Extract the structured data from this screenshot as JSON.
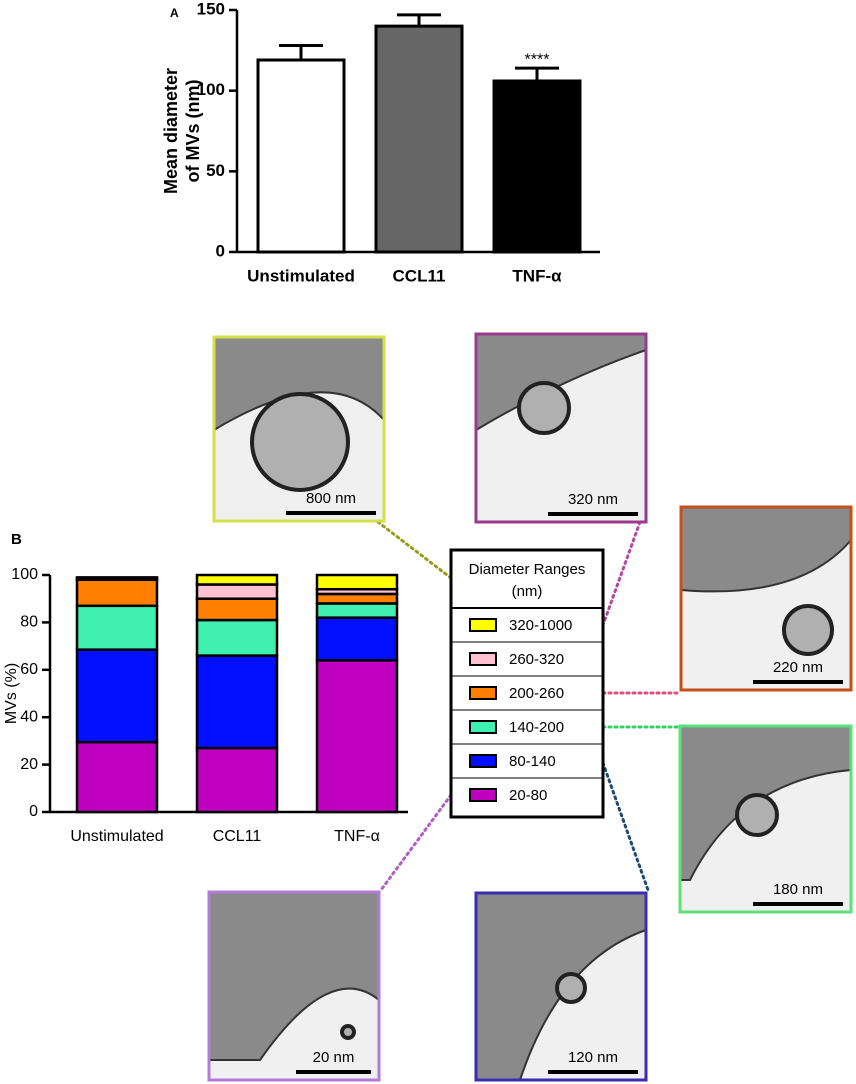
{
  "chart_data": [
    {
      "type": "bar",
      "panel": "A",
      "categories": [
        "Unstimulated",
        "CCL11",
        "TNF-α"
      ],
      "values": [
        119,
        140,
        106
      ],
      "errors": [
        9,
        7,
        8
      ],
      "colors": [
        "#ffffff",
        "#666666",
        "#000000"
      ],
      "ylabel": [
        "Mean diameter",
        "of MVs (nm)"
      ],
      "ylim": [
        0,
        150
      ],
      "yticks": [
        0,
        50,
        100,
        150
      ],
      "annotations": [
        {
          "text": "****",
          "category": "TNF-α"
        }
      ]
    },
    {
      "type": "stacked_bar",
      "panel": "B",
      "categories": [
        "Unstimulated",
        "CCL11",
        "TNF-α"
      ],
      "legend_title": [
        "Diameter Ranges",
        "(nm)"
      ],
      "series": [
        {
          "name": "320-1000",
          "color": "#ffff00",
          "values": [
            0.5,
            4,
            6
          ]
        },
        {
          "name": "260-320",
          "color": "#ffc0d0",
          "values": [
            0.5,
            6,
            2
          ]
        },
        {
          "name": "200-260",
          "color": "#ff8000",
          "values": [
            11,
            9,
            4
          ]
        },
        {
          "name": "140-200",
          "color": "#40f0b0",
          "values": [
            18.5,
            15,
            6
          ]
        },
        {
          "name": "80-140",
          "color": "#0010ff",
          "values": [
            39,
            39,
            18
          ]
        },
        {
          "name": "20-80",
          "color": "#c000c0",
          "values": [
            29.5,
            27,
            64
          ]
        }
      ],
      "ylabel": "MVs (%)",
      "ylim": [
        0,
        100
      ],
      "yticks": [
        0,
        20,
        40,
        60,
        80,
        100
      ]
    }
  ],
  "micrographs": [
    {
      "label": "800 nm",
      "color": "#d2e04a",
      "line_color": "#9a9a20"
    },
    {
      "label": "320 nm",
      "color": "#9a3a8e",
      "line_color": "#b04aa0"
    },
    {
      "label": "220 nm",
      "color": "#c4501c",
      "line_color": "#e0507a"
    },
    {
      "label": "180 nm",
      "color": "#5ce07a",
      "line_color": "#30d060"
    },
    {
      "label": "120 nm",
      "color": "#3a2db0",
      "line_color": "#204a70"
    },
    {
      "label": "20 nm",
      "color": "#b47ad8",
      "line_color": "#b060c0"
    }
  ]
}
